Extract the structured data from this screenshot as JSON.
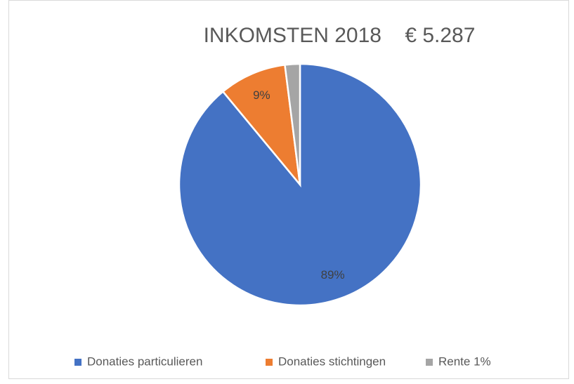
{
  "chart_data": {
    "type": "pie",
    "title": "INKOMSTEN 2018    € 5.287",
    "categories": [
      "Donaties particulieren",
      "Donaties stichtingen",
      "Rente 1%"
    ],
    "values": [
      89,
      9,
      2
    ],
    "value_labels": [
      "89%",
      "9%",
      null
    ],
    "colors": [
      "#4472c4",
      "#ed7d31",
      "#a5a5a5"
    ],
    "legend": "bottom"
  }
}
